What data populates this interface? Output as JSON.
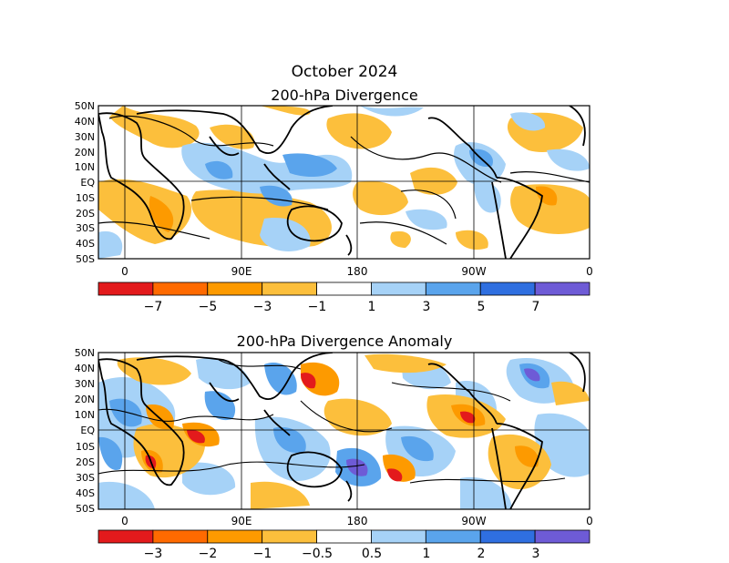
{
  "header": {
    "date": "October 2024"
  },
  "panels": [
    {
      "title": "200-hPa Divergence",
      "lat_labels": [
        "50N",
        "40N",
        "30N",
        "20N",
        "10N",
        "EQ",
        "10S",
        "20S",
        "30S",
        "40S",
        "50S"
      ],
      "lon_labels": [
        "0",
        "90E",
        "180",
        "90W",
        "0"
      ],
      "colorbar": {
        "labels": [
          "−7",
          "−5",
          "−3",
          "−1",
          "1",
          "3",
          "5",
          "7"
        ],
        "colors": [
          "#e31a1c",
          "#ff6a00",
          "#fd9a00",
          "#fcbf3c",
          "#ffffff",
          "#a6d2f7",
          "#5aa4ec",
          "#2f6fe0",
          "#6e5bd6"
        ]
      }
    },
    {
      "title": "200-hPa Divergence Anomaly",
      "lat_labels": [
        "50N",
        "40N",
        "30N",
        "20N",
        "10N",
        "EQ",
        "10S",
        "20S",
        "30S",
        "40S",
        "50S"
      ],
      "lon_labels": [
        "0",
        "90E",
        "180",
        "90W",
        "0"
      ],
      "colorbar": {
        "labels": [
          "−3",
          "−2",
          "−1",
          "−0.5",
          "0.5",
          "1",
          "2",
          "3"
        ],
        "colors": [
          "#e31a1c",
          "#ff6a00",
          "#fd9a00",
          "#fcbf3c",
          "#ffffff",
          "#a6d2f7",
          "#5aa4ec",
          "#2f6fe0",
          "#6e5bd6"
        ]
      }
    }
  ]
}
